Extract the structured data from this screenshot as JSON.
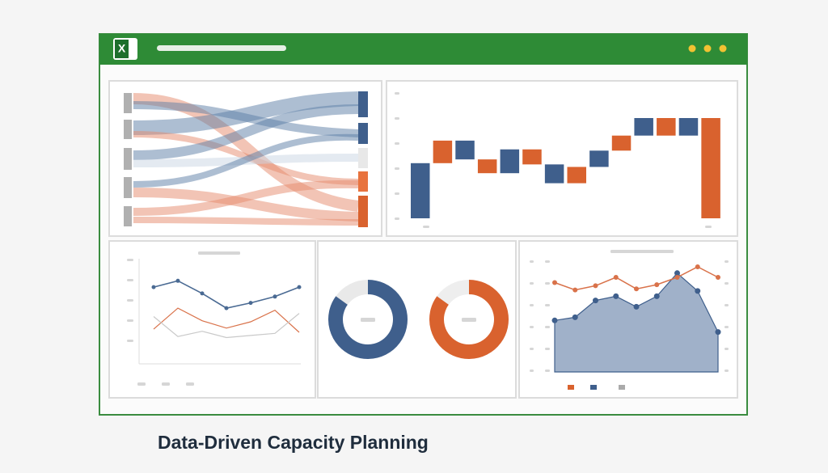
{
  "app_icon": "X",
  "caption": "Data-Driven Capacity Planning",
  "charts": [
    {
      "type": "waterfall",
      "ylim": [
        0,
        100
      ],
      "values": [
        44,
        18,
        -15,
        -11,
        19,
        -12,
        -15,
        13,
        13,
        12,
        14,
        -14,
        14,
        -80
      ],
      "colors": [
        "#3f5f8c",
        "#d9622e",
        "#3f5f8c",
        "#d9622e",
        "#3f5f8c",
        "#d9622e",
        "#3f5f8c",
        "#d9622e",
        "#3f5f8c",
        "#d9622e",
        "#3f5f8c",
        "#d9622e",
        "#3f5f8c",
        "#d9622e"
      ]
    },
    {
      "type": "line",
      "ylim": [
        0,
        100
      ],
      "series": [
        {
          "color": "#4a6a93",
          "values": [
            73,
            79,
            67,
            53,
            58,
            64,
            73
          ]
        },
        {
          "color": "#d9724a",
          "values": [
            33,
            53,
            41,
            34,
            40,
            51,
            30
          ]
        },
        {
          "color": "#c9c9c9",
          "values": [
            45,
            26,
            31,
            25,
            27,
            29,
            48
          ]
        }
      ]
    },
    {
      "type": "donut",
      "values": [
        85,
        15
      ],
      "colors": [
        "#3f5f8c",
        "#e9e9e9"
      ]
    },
    {
      "type": "donut",
      "values": [
        85,
        15
      ],
      "colors": [
        "#d9622e",
        "#eeeeee"
      ]
    },
    {
      "type": "area",
      "ylim": [
        0,
        100
      ],
      "series": [
        {
          "color": "#8fa3bf",
          "values": [
            49,
            52,
            68,
            72,
            62,
            72,
            94,
            77,
            38
          ]
        },
        {
          "color": "#d9724a",
          "values": [
            85,
            78,
            82,
            90,
            79,
            83,
            90,
            100,
            90
          ]
        }
      ]
    }
  ]
}
